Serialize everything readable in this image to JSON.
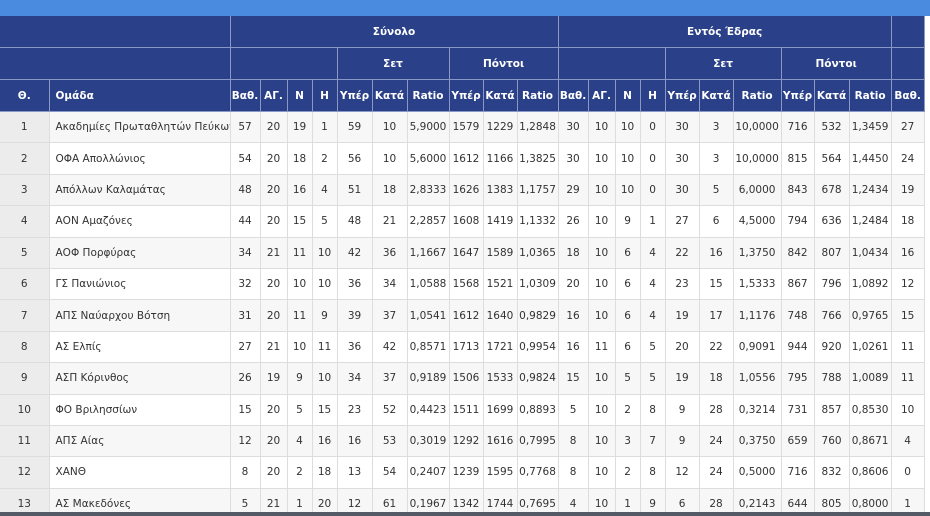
{
  "header": {
    "group_total": "Σύνολο",
    "group_home": "Εντός Έδρας",
    "sub_sets": "Σετ",
    "sub_points": "Πόντοι",
    "col_pos": "Θ.",
    "col_team": "Ομάδα",
    "col_points": "Βαθ.",
    "col_games": "ΑΓ.",
    "col_wins": "Ν",
    "col_losses": "Η",
    "col_for": "Υπέρ",
    "col_against": "Κατά",
    "col_ratio": "Ratio"
  },
  "rows": [
    [
      "1",
      "Ακαδημίες Πρωταθλητών Πεύκων",
      "57",
      "20",
      "19",
      "1",
      "59",
      "10",
      "5,9000",
      "1579",
      "1229",
      "1,2848",
      "30",
      "10",
      "10",
      "0",
      "30",
      "3",
      "10,0000",
      "716",
      "532",
      "1,3459",
      "27"
    ],
    [
      "2",
      "ΟΦΑ Απολλώνιος",
      "54",
      "20",
      "18",
      "2",
      "56",
      "10",
      "5,6000",
      "1612",
      "1166",
      "1,3825",
      "30",
      "10",
      "10",
      "0",
      "30",
      "3",
      "10,0000",
      "815",
      "564",
      "1,4450",
      "24"
    ],
    [
      "3",
      "Απόλλων Καλαμάτας",
      "48",
      "20",
      "16",
      "4",
      "51",
      "18",
      "2,8333",
      "1626",
      "1383",
      "1,1757",
      "29",
      "10",
      "10",
      "0",
      "30",
      "5",
      "6,0000",
      "843",
      "678",
      "1,2434",
      "19"
    ],
    [
      "4",
      "ΑΟΝ Αμαζόνες",
      "44",
      "20",
      "15",
      "5",
      "48",
      "21",
      "2,2857",
      "1608",
      "1419",
      "1,1332",
      "26",
      "10",
      "9",
      "1",
      "27",
      "6",
      "4,5000",
      "794",
      "636",
      "1,2484",
      "18"
    ],
    [
      "5",
      "ΑΟΦ Πορφύρας",
      "34",
      "21",
      "11",
      "10",
      "42",
      "36",
      "1,1667",
      "1647",
      "1589",
      "1,0365",
      "18",
      "10",
      "6",
      "4",
      "22",
      "16",
      "1,3750",
      "842",
      "807",
      "1,0434",
      "16"
    ],
    [
      "6",
      "ΓΣ Πανιώνιος",
      "32",
      "20",
      "10",
      "10",
      "36",
      "34",
      "1,0588",
      "1568",
      "1521",
      "1,0309",
      "20",
      "10",
      "6",
      "4",
      "23",
      "15",
      "1,5333",
      "867",
      "796",
      "1,0892",
      "12"
    ],
    [
      "7",
      "ΑΠΣ Ναύαρχου Βότση",
      "31",
      "20",
      "11",
      "9",
      "39",
      "37",
      "1,0541",
      "1612",
      "1640",
      "0,9829",
      "16",
      "10",
      "6",
      "4",
      "19",
      "17",
      "1,1176",
      "748",
      "766",
      "0,9765",
      "15"
    ],
    [
      "8",
      "ΑΣ Ελπίς",
      "27",
      "21",
      "10",
      "11",
      "36",
      "42",
      "0,8571",
      "1713",
      "1721",
      "0,9954",
      "16",
      "11",
      "6",
      "5",
      "20",
      "22",
      "0,9091",
      "944",
      "920",
      "1,0261",
      "11"
    ],
    [
      "9",
      "ΑΣΠ Κόρινθος",
      "26",
      "19",
      "9",
      "10",
      "34",
      "37",
      "0,9189",
      "1506",
      "1533",
      "0,9824",
      "15",
      "10",
      "5",
      "5",
      "19",
      "18",
      "1,0556",
      "795",
      "788",
      "1,0089",
      "11"
    ],
    [
      "10",
      "ΦΟ Βριλησσίων",
      "15",
      "20",
      "5",
      "15",
      "23",
      "52",
      "0,4423",
      "1511",
      "1699",
      "0,8893",
      "5",
      "10",
      "2",
      "8",
      "9",
      "28",
      "0,3214",
      "731",
      "857",
      "0,8530",
      "10"
    ],
    [
      "11",
      "ΑΠΣ Αίας",
      "12",
      "20",
      "4",
      "16",
      "16",
      "53",
      "0,3019",
      "1292",
      "1616",
      "0,7995",
      "8",
      "10",
      "3",
      "7",
      "9",
      "24",
      "0,3750",
      "659",
      "760",
      "0,8671",
      "4"
    ],
    [
      "12",
      "ΧΑΝΘ",
      "8",
      "20",
      "2",
      "18",
      "13",
      "54",
      "0,2407",
      "1239",
      "1595",
      "0,7768",
      "8",
      "10",
      "2",
      "8",
      "12",
      "24",
      "0,5000",
      "716",
      "832",
      "0,8606",
      "0"
    ],
    [
      "13",
      "ΑΣ Μακεδόνες",
      "5",
      "21",
      "1",
      "20",
      "12",
      "61",
      "0,1967",
      "1342",
      "1744",
      "0,7695",
      "4",
      "10",
      "1",
      "9",
      "6",
      "28",
      "0,2143",
      "644",
      "805",
      "0,8000",
      "1"
    ]
  ]
}
